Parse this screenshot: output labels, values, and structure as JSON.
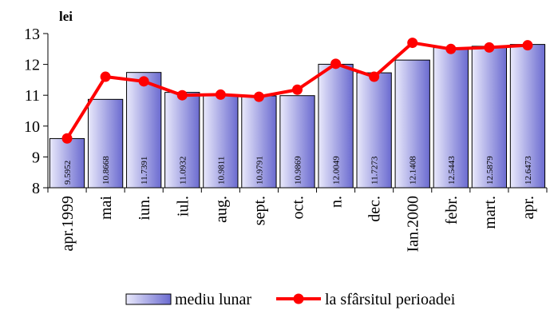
{
  "chart_data": {
    "type": "bar+line",
    "unit_label": "lei",
    "categories": [
      "apr.1999",
      "mai",
      "iun.",
      "iul.",
      "aug.",
      "sept.",
      "oct.",
      "n.",
      "dec.",
      "Ian.2000",
      "febr.",
      "mart.",
      "apr."
    ],
    "series": [
      {
        "name": "mediu lunar",
        "kind": "bar",
        "values": [
          9.5952,
          10.8668,
          11.7391,
          11.0932,
          10.9811,
          10.9791,
          10.9869,
          12.0049,
          11.7273,
          12.1408,
          12.5443,
          12.5879,
          12.6473
        ],
        "labels": [
          "9.5952",
          "10.8668",
          "11.7391",
          "11.0932",
          "10.9811",
          "10.9791",
          "10.9869",
          "12.0049",
          "11.7273",
          "12.1408",
          "12.5443",
          "12.5879",
          "12.6473"
        ],
        "color": "#7b7bd6"
      },
      {
        "name": "la sfârsitul perioadei",
        "kind": "line",
        "values": [
          9.6,
          11.6,
          11.45,
          11.0,
          11.02,
          10.95,
          11.18,
          12.02,
          11.6,
          12.7,
          12.5,
          12.55,
          12.62
        ],
        "color": "#ff0000"
      }
    ],
    "ylim": [
      8,
      13
    ],
    "yticks": [
      "8",
      "9",
      "10",
      "11",
      "12",
      "13"
    ],
    "legend_position": "bottom"
  }
}
